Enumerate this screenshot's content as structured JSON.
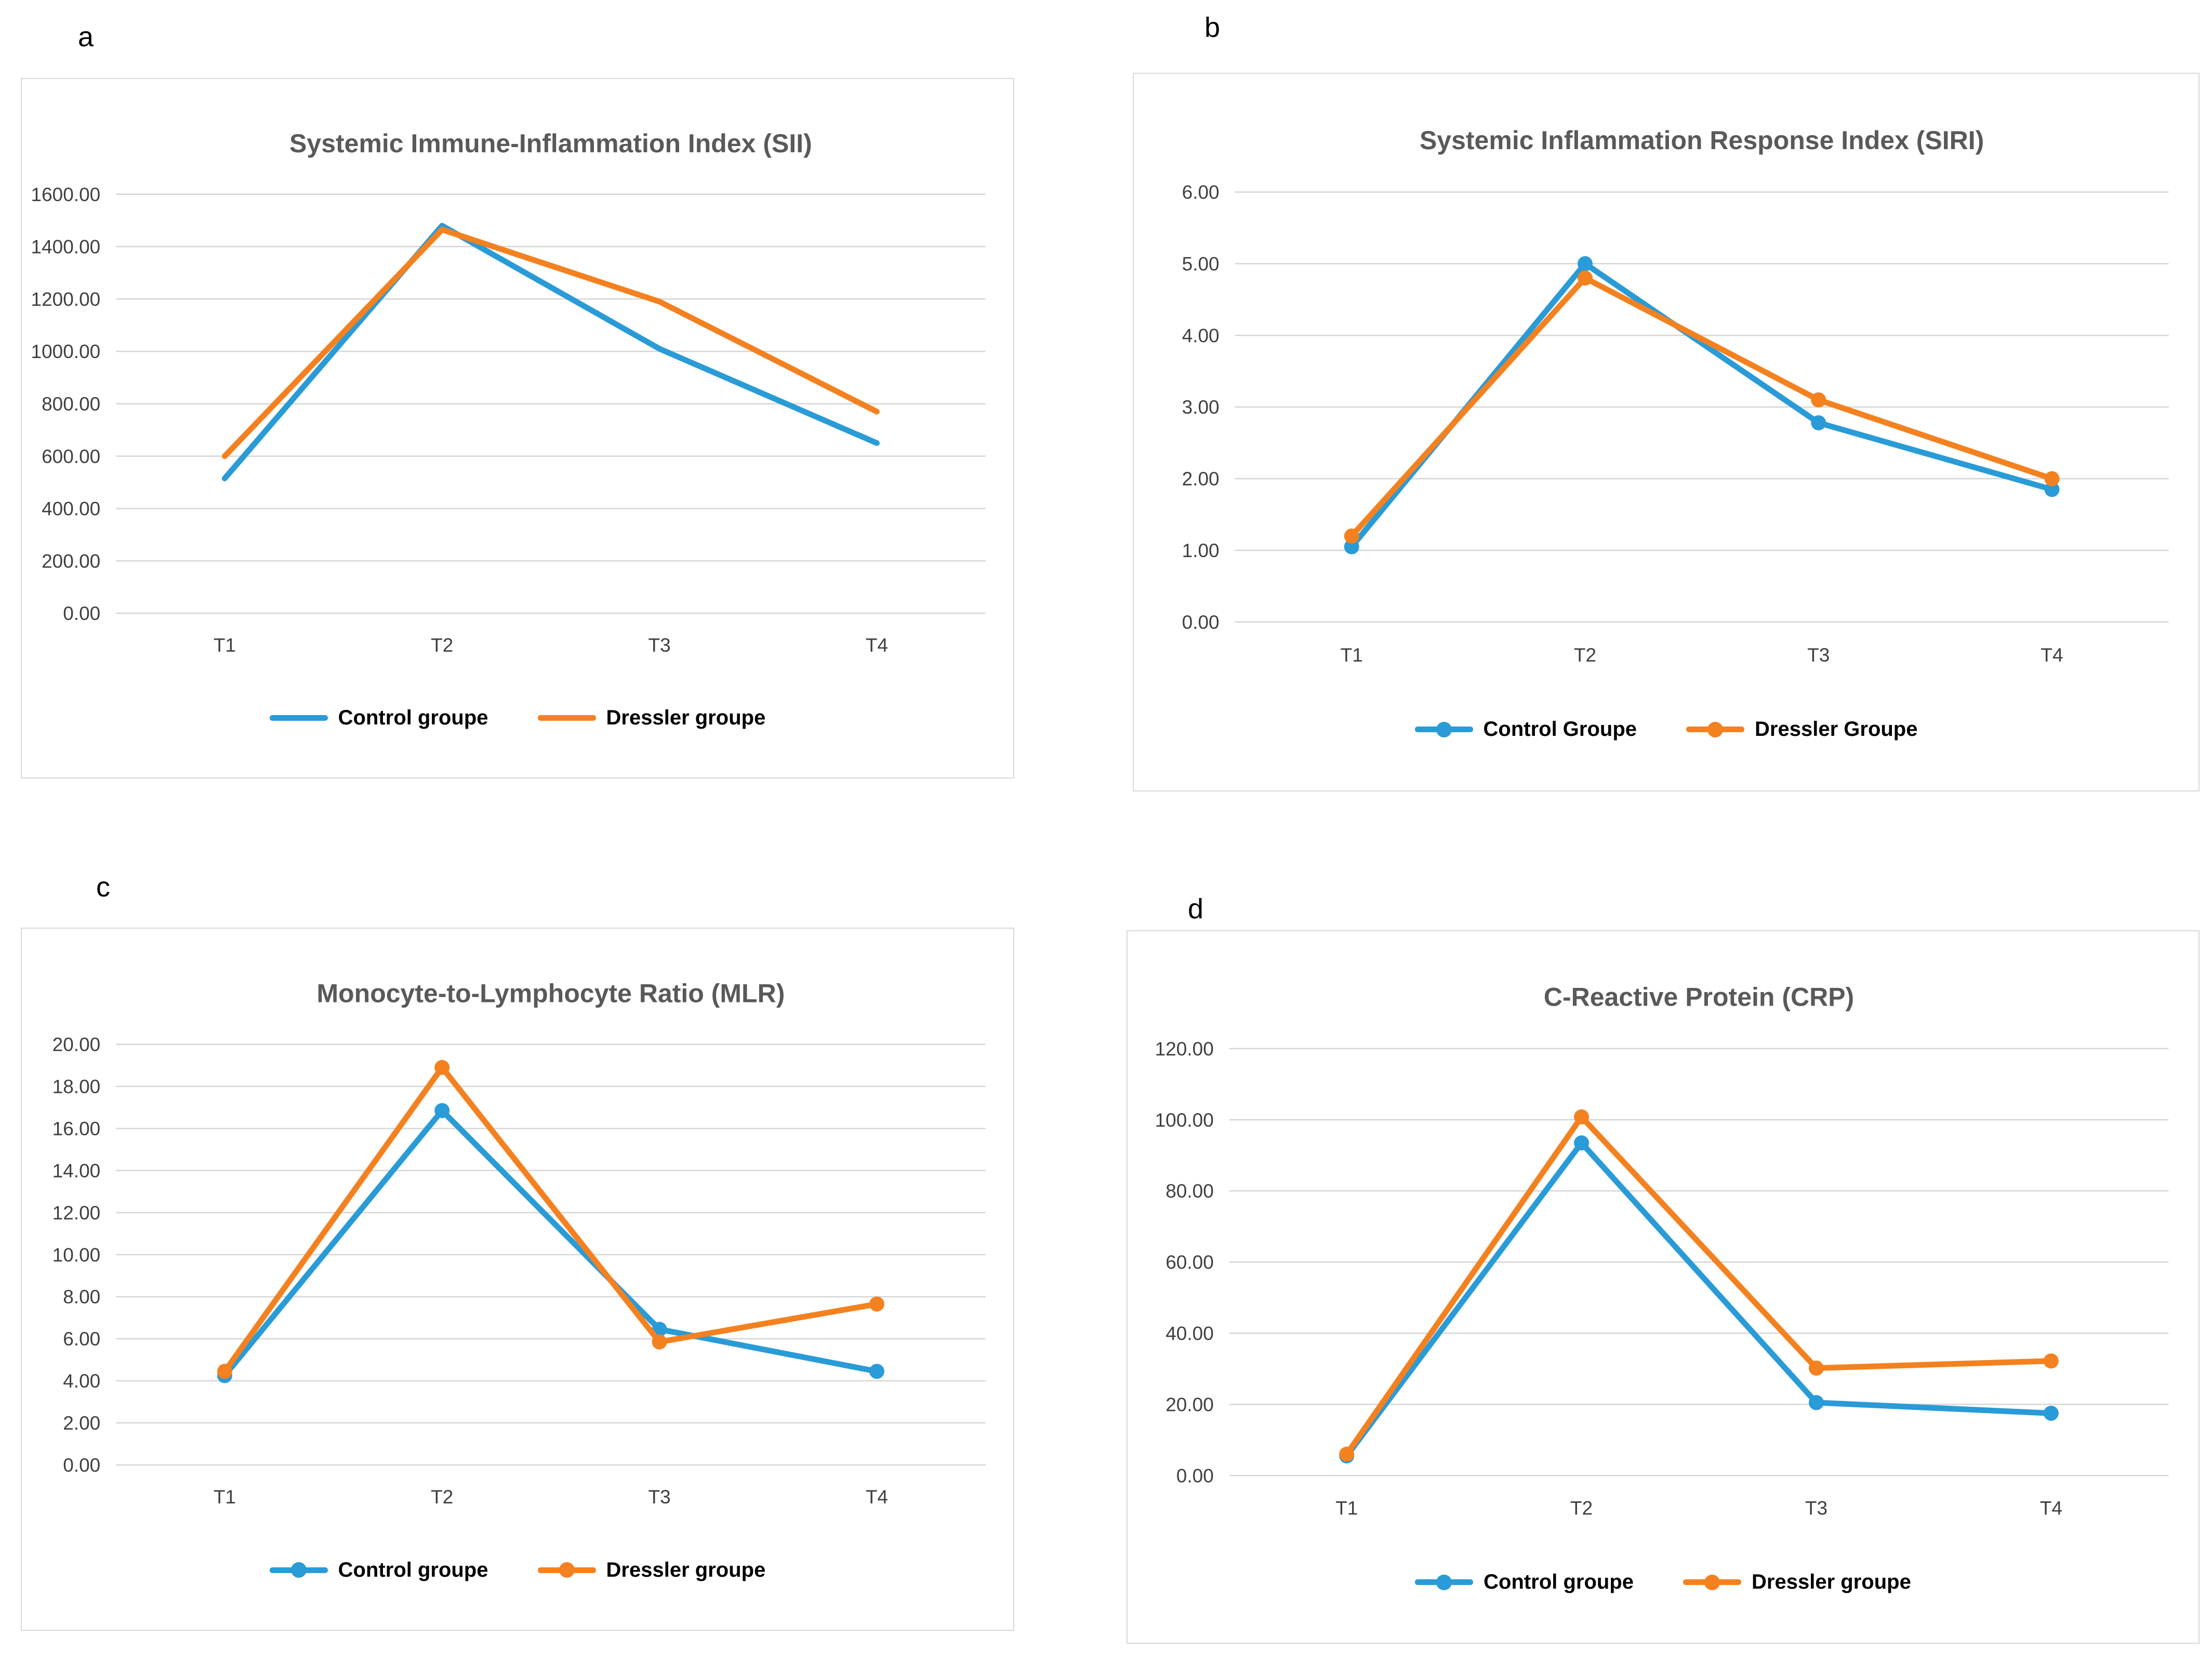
{
  "figure": {
    "description": "Four-panel line chart figure comparing inflammation markers over time points T1-T4 between two groups",
    "panel_letters": [
      "a",
      "b",
      "c",
      "d"
    ]
  },
  "colors": {
    "control_blue": "#299BD7",
    "dressler_orange": "#F4811F",
    "gridline": "#d6d6d6",
    "title_gray": "#595959",
    "tick_gray": "#3f3f3f"
  },
  "chart_data": [
    {
      "type": "line",
      "panel_letter": "a",
      "title": "Systemic Immune-Inflammation Index (SII)",
      "categories": [
        "T1",
        "T2",
        "T3",
        "T4"
      ],
      "series": [
        {
          "name": "Control groupe",
          "color": "#299BD7",
          "values": [
            515,
            1480,
            1010,
            650
          ]
        },
        {
          "name": "Dressler groupe",
          "color": "#F4811F",
          "values": [
            600,
            1465,
            1190,
            770
          ]
        }
      ],
      "xlabel": "",
      "ylabel": "",
      "ylim": [
        0,
        1600
      ],
      "y_step": 200,
      "grid": true,
      "markers": false,
      "legend_position": "bottom"
    },
    {
      "type": "line",
      "panel_letter": "b",
      "title": "Systemic Inflammation Response Index (SIRI)",
      "categories": [
        "T1",
        "T2",
        "T3",
        "T4"
      ],
      "series": [
        {
          "name": "Control Groupe",
          "color": "#299BD7",
          "values": [
            1.05,
            5.0,
            2.78,
            1.85
          ]
        },
        {
          "name": "Dressler Groupe",
          "color": "#F4811F",
          "values": [
            1.2,
            4.8,
            3.1,
            2.0
          ]
        }
      ],
      "xlabel": "",
      "ylabel": "",
      "ylim": [
        0,
        6
      ],
      "y_step": 1,
      "grid": true,
      "markers": true,
      "legend_position": "bottom"
    },
    {
      "type": "line",
      "panel_letter": "c",
      "title": "Monocyte-to-Lymphocyte Ratio (MLR)",
      "categories": [
        "T1",
        "T2",
        "T3",
        "T4"
      ],
      "series": [
        {
          "name": "Control groupe",
          "color": "#299BD7",
          "values": [
            4.25,
            16.85,
            6.45,
            4.45
          ]
        },
        {
          "name": "Dressler groupe",
          "color": "#F4811F",
          "values": [
            4.45,
            18.9,
            5.85,
            7.65
          ]
        }
      ],
      "xlabel": "",
      "ylabel": "",
      "ylim": [
        0,
        20
      ],
      "y_step": 2,
      "grid": true,
      "markers": true,
      "legend_position": "bottom"
    },
    {
      "type": "line",
      "panel_letter": "d",
      "title": "C-Reactive Protein (CRP)",
      "categories": [
        "T1",
        "T2",
        "T3",
        "T4"
      ],
      "series": [
        {
          "name": "Control groupe",
          "color": "#299BD7",
          "values": [
            5.5,
            93.5,
            20.5,
            17.5
          ]
        },
        {
          "name": "Dressler groupe",
          "color": "#F4811F",
          "values": [
            6.0,
            100.8,
            30.2,
            32.2
          ]
        }
      ],
      "xlabel": "",
      "ylabel": "",
      "ylim": [
        0,
        120
      ],
      "y_step": 20,
      "grid": true,
      "markers": true,
      "legend_position": "bottom"
    }
  ]
}
